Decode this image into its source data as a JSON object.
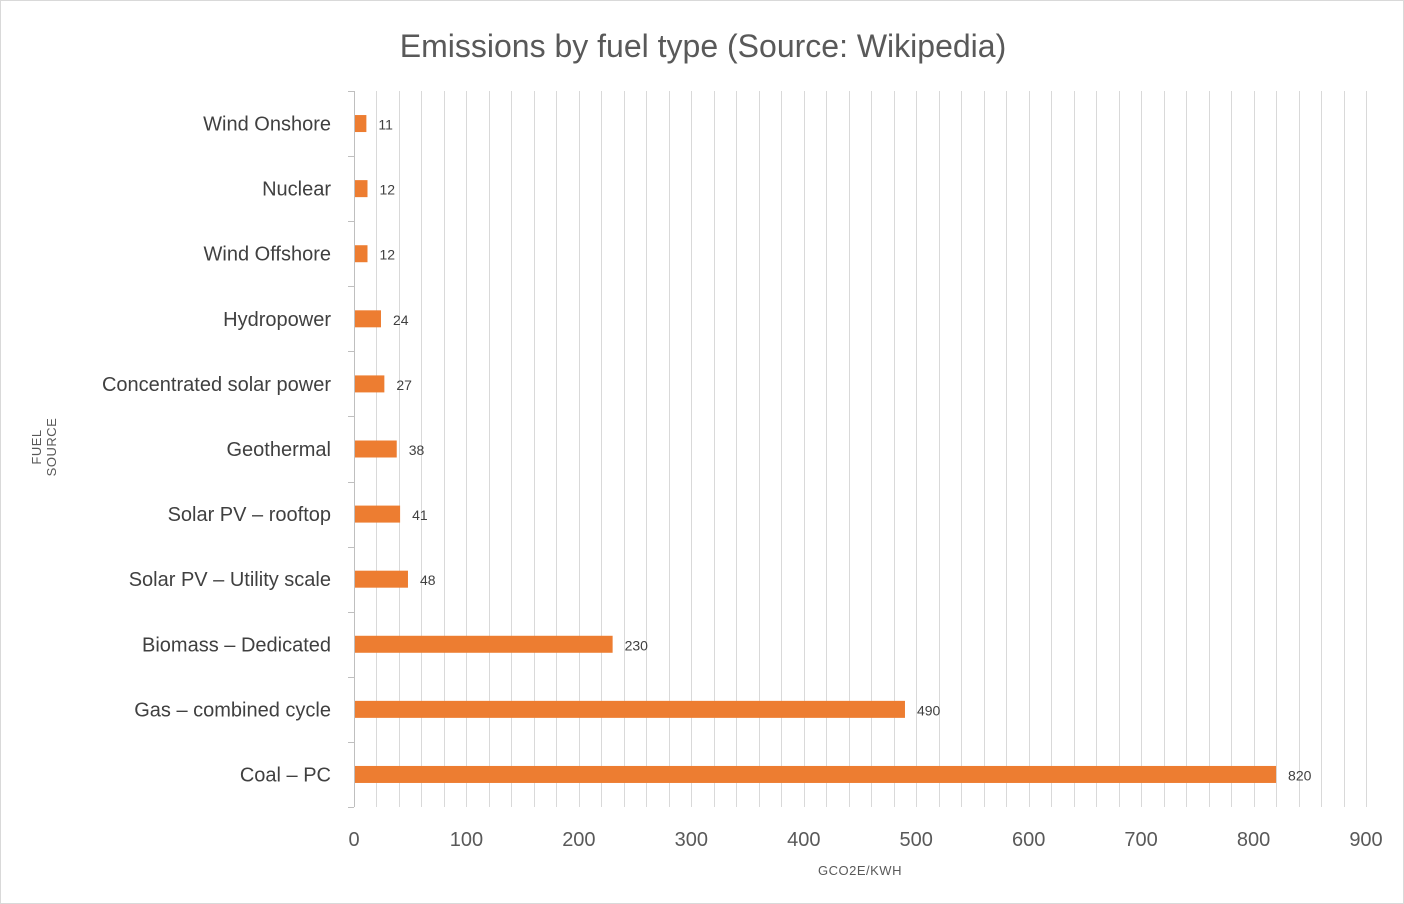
{
  "chart_data": {
    "type": "bar",
    "orientation": "horizontal",
    "title": "Emissions by fuel type (Source: Wikipedia)",
    "xlabel": "GCO2E/KWH",
    "ylabel_lines": [
      "FUEL",
      "SOURCE"
    ],
    "categories": [
      "Wind Onshore",
      "Nuclear",
      "Wind Offshore",
      "Hydropower",
      "Concentrated solar power",
      "Geothermal",
      "Solar PV – rooftop",
      "Solar PV – Utility scale",
      "Biomass – Dedicated",
      "Gas – combined cycle",
      "Coal – PC"
    ],
    "values": [
      11,
      12,
      12,
      24,
      27,
      38,
      41,
      48,
      230,
      490,
      820
    ],
    "data_labels": [
      "11",
      "12",
      "12",
      "24",
      "27",
      "38",
      "41",
      "48",
      "230",
      "490",
      "820"
    ],
    "xlim": [
      0,
      900
    ],
    "x_ticks": [
      "0",
      "100",
      "200",
      "300",
      "400",
      "500",
      "600",
      "700",
      "800",
      "900"
    ],
    "x_tick_values": [
      0,
      100,
      200,
      300,
      400,
      500,
      600,
      700,
      800,
      900
    ],
    "minor_gridline_step": 20,
    "grid": true,
    "legend": "none",
    "bar_color": "#ED7D31"
  }
}
